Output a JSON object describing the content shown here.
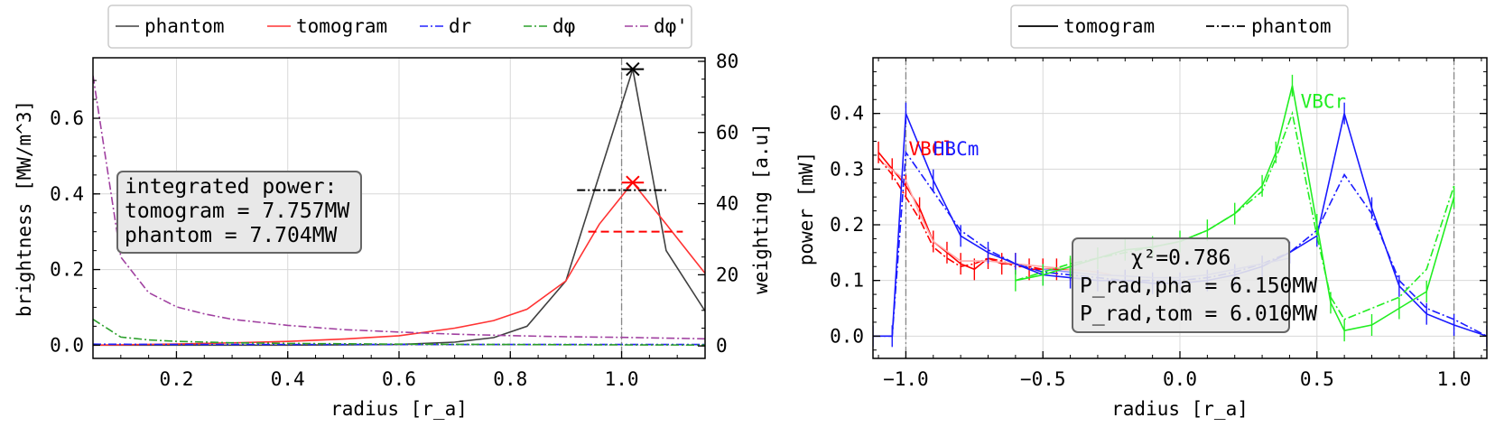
{
  "chart_data": [
    {
      "type": "line",
      "xlabel": "radius [r_a]",
      "ylabel": "brightness [MW/m^3]",
      "y2label": "weighting [a.u]",
      "xlim": [
        0.05,
        1.15
      ],
      "ylim": [
        -0.035,
        0.76
      ],
      "y2lim": [
        -3.5,
        81
      ],
      "xticks": [
        "0.2",
        "0.4",
        "0.6",
        "0.8",
        "1.0"
      ],
      "yticks": [
        "0.0",
        "0.2",
        "0.4",
        "0.6"
      ],
      "y2ticks": [
        "0",
        "20",
        "40",
        "60",
        "80"
      ],
      "grid": true,
      "legend_position": "top-outside",
      "legend": [
        {
          "label": "phantom",
          "color": "#404040",
          "dash": "solid"
        },
        {
          "label": "tomogram",
          "color": "#ff3333",
          "dash": "solid"
        },
        {
          "label": "dr",
          "color": "#2222ff",
          "dash": "dashdot"
        },
        {
          "label": "dφ",
          "color": "#2ca02c",
          "dash": "dashdot"
        },
        {
          "label": "dφ'",
          "color": "#a040a0",
          "dash": "dashdot"
        }
      ],
      "series": [
        {
          "name": "phantom",
          "axis": "left",
          "color": "#404040",
          "x": [
            0.05,
            0.1,
            0.2,
            0.3,
            0.4,
            0.5,
            0.6,
            0.7,
            0.77,
            0.83,
            0.9,
            0.96,
            1.02,
            1.08,
            1.15
          ],
          "y": [
            0.0,
            0.0,
            0.0,
            0.0,
            0.0,
            0.001,
            0.002,
            0.008,
            0.02,
            0.05,
            0.17,
            0.45,
            0.73,
            0.25,
            0.09
          ]
        },
        {
          "name": "tomogram",
          "axis": "left",
          "color": "#ff3333",
          "x": [
            0.05,
            0.1,
            0.2,
            0.3,
            0.4,
            0.5,
            0.6,
            0.7,
            0.77,
            0.83,
            0.9,
            0.96,
            1.02,
            1.08,
            1.15
          ],
          "y": [
            0.0,
            0.001,
            0.003,
            0.006,
            0.01,
            0.016,
            0.025,
            0.045,
            0.065,
            0.095,
            0.17,
            0.32,
            0.43,
            0.32,
            0.19
          ]
        },
        {
          "name": "dr",
          "axis": "right",
          "color": "#2222ff",
          "x": [
            0.05,
            0.2,
            0.4,
            0.6,
            0.8,
            1.0,
            1.15
          ],
          "y": [
            0.5,
            0.4,
            0.4,
            0.4,
            0.4,
            0.4,
            0.4
          ]
        },
        {
          "name": "dφ",
          "axis": "right",
          "color": "#2ca02c",
          "x": [
            0.05,
            0.1,
            0.15,
            0.2,
            0.3,
            0.4,
            0.6,
            0.8,
            1.0,
            1.15
          ],
          "y": [
            7.5,
            2.5,
            1.7,
            1.3,
            0.9,
            0.7,
            0.5,
            0.4,
            0.3,
            0.25
          ]
        },
        {
          "name": "dφ'",
          "axis": "right",
          "color": "#a040a0",
          "x": [
            0.05,
            0.1,
            0.15,
            0.2,
            0.25,
            0.3,
            0.4,
            0.5,
            0.6,
            0.7,
            0.8,
            0.9,
            1.0,
            1.15
          ],
          "y": [
            76,
            25,
            15,
            11,
            9,
            7.5,
            5.8,
            4.6,
            3.9,
            3.3,
            2.9,
            2.6,
            2.4,
            2.0
          ]
        }
      ],
      "markers": [
        {
          "name": "phantom-peak",
          "color": "#000000",
          "x": 1.02,
          "y": 0.73,
          "xmin": 1.0,
          "xmax": 1.04
        },
        {
          "name": "phantom-width",
          "color": "#000000",
          "y": 0.41,
          "xmin": 0.92,
          "xmax": 1.08,
          "dash": "dashdot"
        },
        {
          "name": "tomogram-peak",
          "color": "#ff0000",
          "x": 1.02,
          "y": 0.43,
          "xmin": 1.0,
          "xmax": 1.04
        },
        {
          "name": "tomogram-width",
          "color": "#ff0000",
          "y": 0.3,
          "xmin": 0.94,
          "xmax": 1.11,
          "dash": "dashed"
        }
      ],
      "vline": 1.0,
      "annotation": [
        "integrated power:",
        "tomogram = 7.757MW",
        "phantom = 7.704MW"
      ]
    },
    {
      "type": "line",
      "xlabel": "radius [r_a]",
      "ylabel": "power [mW]",
      "xlim": [
        -1.12,
        1.12
      ],
      "ylim": [
        -0.04,
        0.5
      ],
      "xticks": [
        "−1.0",
        "−0.5",
        "0.0",
        "0.5",
        "1.0"
      ],
      "yticks": [
        "0.0",
        "0.1",
        "0.2",
        "0.3",
        "0.4"
      ],
      "grid": true,
      "legend_position": "top-outside",
      "legend": [
        {
          "label": "tomogram",
          "color": "#000000",
          "dash": "solid"
        },
        {
          "label": "phantom",
          "color": "#000000",
          "dash": "dashdot"
        }
      ],
      "camera_labels": [
        {
          "label": "VBCl",
          "color": "#ff0000",
          "x": -0.99,
          "y": 0.325
        },
        {
          "label": "HBCm",
          "color": "#1a1aff",
          "x": -0.9,
          "y": 0.325
        },
        {
          "label": "VBCr",
          "color": "#22ee22",
          "x": 0.44,
          "y": 0.41
        }
      ],
      "series": [
        {
          "name": "VBCl tomogram",
          "color": "#ff0000",
          "dash": "solid",
          "x": [
            -1.1,
            -1.05,
            -1.0,
            -0.95,
            -0.9,
            -0.85,
            -0.8,
            -0.75,
            -0.7,
            -0.65,
            -0.6,
            -0.55,
            -0.5,
            -0.45,
            -0.4
          ],
          "y": [
            0.33,
            0.3,
            0.27,
            0.23,
            0.17,
            0.15,
            0.13,
            0.12,
            0.14,
            0.13,
            0.13,
            0.12,
            0.12,
            0.12,
            0.12
          ]
        },
        {
          "name": "VBCl phantom",
          "color": "#ff0000",
          "dash": "dashdot",
          "x": [
            -1.1,
            -1.05,
            -1.0,
            -0.95,
            -0.9,
            -0.85,
            -0.8,
            -0.75,
            -0.7,
            -0.65,
            -0.6,
            -0.55,
            -0.5,
            -0.45,
            -0.4
          ],
          "y": [
            0.32,
            0.29,
            0.25,
            0.21,
            0.16,
            0.14,
            0.125,
            0.13,
            0.14,
            0.135,
            0.125,
            0.125,
            0.12,
            0.12,
            0.12
          ]
        },
        {
          "name": "VBCl fit",
          "color": "#ffaaaa",
          "dash": "solid",
          "x": [
            -1.08,
            -1.0,
            -0.95,
            -0.9,
            -0.8,
            -0.7,
            -0.6,
            -0.5,
            -0.4,
            -0.3,
            -0.25
          ],
          "y": [
            0.31,
            0.28,
            0.22,
            0.17,
            0.135,
            0.135,
            0.13,
            0.125,
            0.12,
            0.115,
            0.11
          ]
        },
        {
          "name": "HBCm tomogram",
          "color": "#1a1aff",
          "dash": "solid",
          "x": [
            -1.12,
            -1.05,
            -1.0,
            -0.9,
            -0.8,
            -0.7,
            -0.6,
            -0.5,
            -0.4,
            -0.3,
            -0.2,
            -0.1,
            0.0,
            0.1,
            0.2,
            0.3,
            0.4,
            0.5,
            0.6,
            0.7,
            0.8,
            0.9,
            1.0,
            1.12
          ],
          "y": [
            0.0,
            0.0,
            0.4,
            0.28,
            0.18,
            0.15,
            0.13,
            0.11,
            0.105,
            0.1,
            0.1,
            0.095,
            0.095,
            0.1,
            0.11,
            0.125,
            0.15,
            0.18,
            0.4,
            0.23,
            0.09,
            0.04,
            0.02,
            0.0
          ]
        },
        {
          "name": "HBCm phantom",
          "color": "#1a1aff",
          "dash": "dashdot",
          "x": [
            -1.12,
            -1.05,
            -1.0,
            -0.9,
            -0.8,
            -0.7,
            -0.6,
            -0.5,
            -0.4,
            -0.3,
            -0.2,
            -0.1,
            0.0,
            0.1,
            0.2,
            0.3,
            0.4,
            0.5,
            0.6,
            0.7,
            0.8,
            0.9,
            1.0,
            1.12
          ],
          "y": [
            0.0,
            0.0,
            0.33,
            0.26,
            0.19,
            0.155,
            0.13,
            0.115,
            0.11,
            0.105,
            0.1,
            0.1,
            0.1,
            0.105,
            0.115,
            0.13,
            0.15,
            0.19,
            0.29,
            0.22,
            0.1,
            0.05,
            0.03,
            0.0
          ]
        },
        {
          "name": "HBCm fit",
          "color": "#9090ff",
          "dash": "solid",
          "x": [
            -0.5,
            -0.4,
            -0.3,
            -0.2,
            -0.1,
            0.0,
            0.1,
            0.2,
            0.3,
            0.4
          ],
          "y": [
            0.12,
            0.115,
            0.11,
            0.108,
            0.105,
            0.105,
            0.11,
            0.12,
            0.13,
            0.14
          ]
        },
        {
          "name": "VBCr tomogram",
          "color": "#22ee22",
          "dash": "solid",
          "x": [
            -0.6,
            -0.5,
            -0.4,
            -0.3,
            -0.2,
            -0.1,
            0.0,
            0.1,
            0.2,
            0.3,
            0.35,
            0.41,
            0.5,
            0.55,
            0.6,
            0.7,
            0.8,
            0.9,
            1.0
          ],
          "y": [
            0.1,
            0.11,
            0.125,
            0.14,
            0.155,
            0.16,
            0.17,
            0.19,
            0.22,
            0.27,
            0.33,
            0.45,
            0.2,
            0.06,
            0.01,
            0.02,
            0.05,
            0.08,
            0.25
          ]
        },
        {
          "name": "VBCr phantom",
          "color": "#22ee22",
          "dash": "dashdot",
          "x": [
            -0.6,
            -0.5,
            -0.4,
            -0.3,
            -0.2,
            -0.1,
            0.0,
            0.1,
            0.2,
            0.3,
            0.35,
            0.41,
            0.5,
            0.55,
            0.6,
            0.7,
            0.8,
            0.9,
            1.0
          ],
          "y": [
            0.1,
            0.115,
            0.13,
            0.14,
            0.15,
            0.16,
            0.17,
            0.19,
            0.22,
            0.26,
            0.32,
            0.4,
            0.18,
            0.07,
            0.03,
            0.05,
            0.07,
            0.12,
            0.27
          ]
        }
      ],
      "vlines": [
        -1.0,
        1.0
      ],
      "annotation": [
        "χ²=0.786",
        "P_rad,pha = 6.150MW",
        "P_rad,tom = 6.010MW"
      ]
    }
  ]
}
